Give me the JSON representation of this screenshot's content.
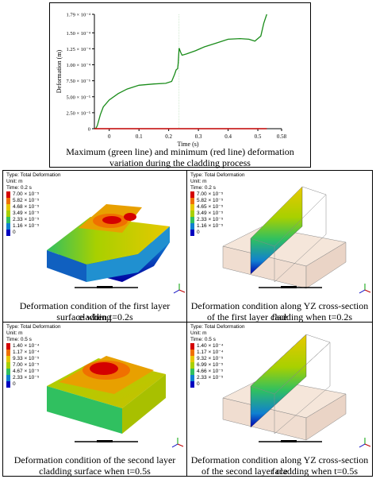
{
  "chart_data": {
    "type": "line",
    "xlabel": "Time (s)",
    "ylabel": "Deformation (m)",
    "xlim": [
      -0.05,
      0.58
    ],
    "ylim": [
      0,
      0.000179
    ],
    "x_ticks": [
      "0",
      "0.1",
      "0.2",
      "0.3",
      "0.4",
      "0.5",
      "0.58"
    ],
    "y_ticks": [
      "0",
      "2.5e-5",
      "5.0e-5",
      "7.5e-5",
      "1.0e-4",
      "1.25e-4",
      "1.5e-4",
      "1.79e-4"
    ],
    "series": [
      {
        "color": "#1a8c1a",
        "x": [
          -0.05,
          -0.045,
          -0.04,
          -0.03,
          -0.02,
          0.0,
          0.03,
          0.06,
          0.1,
          0.15,
          0.19,
          0.21,
          0.22,
          0.225,
          0.23,
          0.232,
          0.235,
          0.24,
          0.245,
          0.26,
          0.29,
          0.32,
          0.36,
          0.4,
          0.44,
          0.47,
          0.49,
          0.51,
          0.52,
          0.53
        ],
        "y": [
          0,
          5e-07,
          5e-06,
          2.2e-05,
          3.4e-05,
          4.5e-05,
          5.5e-05,
          6.2e-05,
          6.8e-05,
          7e-05,
          7.1e-05,
          7.4e-05,
          8.5e-05,
          9.2e-05,
          9.4e-05,
          0.000102,
          0.000126,
          0.00012,
          0.000115,
          0.000117,
          0.000122,
          0.000128,
          0.000134,
          0.00014,
          0.000141,
          0.00014,
          0.000137,
          0.000145,
          0.000165,
          0.000179
        ]
      },
      {
        "color": "#c00000",
        "x": [
          -0.05,
          0.53
        ],
        "y": [
          0,
          0
        ]
      }
    ],
    "grid": false
  },
  "chart_caption": {
    "line1": "Maximum (green line) and minimum (red line) deformation",
    "line2": "variation during the cladding process"
  },
  "panels": [
    {
      "type": "Type: Total Deformation",
      "unit": "Unit: m",
      "time": "Time: 0.2 s",
      "legend": [
        "7.00 × 10⁻⁵",
        "5.82 × 10⁻⁵",
        "4.68 × 10⁻⁵",
        "3.49 × 10⁻⁵",
        "2.33 × 10⁻⁵",
        "1.16 × 10⁻⁵",
        "0"
      ],
      "caption1": "Deformation condition of the first layer cladding",
      "caption2": "surface when t=0.2s"
    },
    {
      "type": "Type: Total Deformation",
      "unit": "Unit: m",
      "time": "Time: 0.2 s",
      "legend": [
        "7.00 × 10⁻⁵",
        "5.82 × 10⁻⁵",
        "4.65 × 10⁻⁵",
        "3.49 × 10⁻⁵",
        "2.33 × 10⁻⁵",
        "1.16 × 10⁻⁵",
        "0"
      ],
      "caption1": "Deformation condition along YZ cross-section face",
      "caption2": "of the first layer cladding when t=0.2s"
    },
    {
      "type": "Type: Total Deformation",
      "unit": "Unit: m",
      "time": "Time: 0.5 s",
      "legend": [
        "1.40 × 10⁻⁴",
        "1.17 × 10⁻⁴",
        "9.33 × 10⁻⁵",
        "7.00 × 10⁻⁵",
        "4.67 × 10⁻⁵",
        "2.33 × 10⁻⁵",
        "0"
      ],
      "caption1": "Deformation condition of the second layer",
      "caption2": "cladding surface when t=0.5s"
    },
    {
      "type": "Type: Total Deformation",
      "unit": "Unit: m",
      "time": "Time: 0.5 s",
      "legend": [
        "1.40 × 10⁻⁴",
        "1.17 × 10⁻⁴",
        "9.32 × 10⁻⁵",
        "6.99 × 10⁻⁵",
        "4.66 × 10⁻⁵",
        "2.33 × 10⁻⁵",
        "0"
      ],
      "caption1": "Deformation condition along YZ cross-section face",
      "caption2": "of the second layer cladding when t=0.5s"
    }
  ],
  "legend_colors": [
    "#d40000",
    "#f07000",
    "#e8c800",
    "#a8d000",
    "#30c060",
    "#1080d0",
    "#0000c0"
  ],
  "colors": {
    "green_line": "#1a8c1a",
    "red_line": "#c00000"
  }
}
